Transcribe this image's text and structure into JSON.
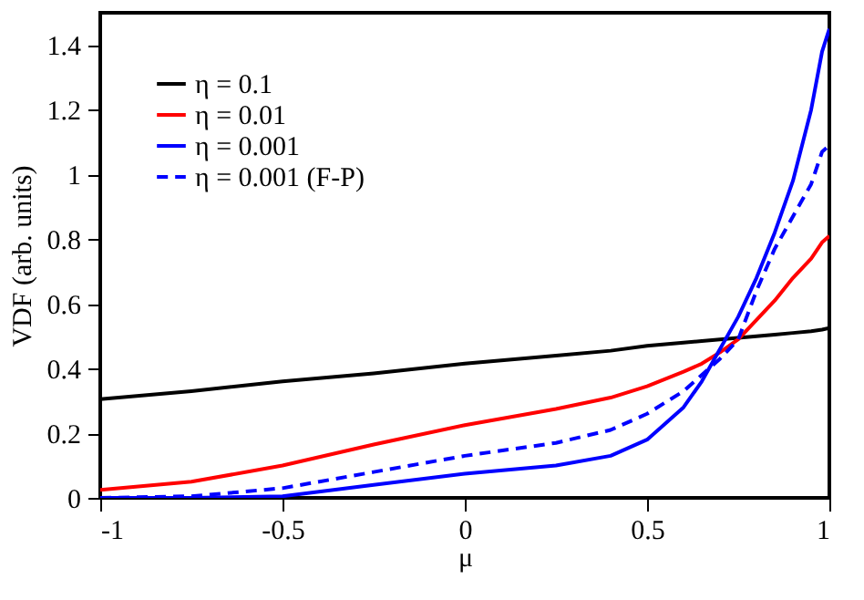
{
  "chart_data": {
    "type": "line",
    "xlabel": "μ",
    "ylabel": "VDF (arb. units)",
    "x": [
      -1,
      -0.75,
      -0.5,
      -0.25,
      0,
      0.25,
      0.4,
      0.5,
      0.6,
      0.65,
      0.7,
      0.75,
      0.8,
      0.85,
      0.9,
      0.95,
      0.98,
      1
    ],
    "xlim": [
      -1,
      1
    ],
    "xticks": [
      -1,
      -0.5,
      0,
      0.5,
      1
    ],
    "ylim": [
      0,
      1.5
    ],
    "yticks": [
      0,
      0.2,
      0.4,
      0.6,
      0.8,
      1,
      1.2,
      1.4
    ],
    "legend": "top left",
    "series": [
      {
        "name": "η = 0.1",
        "color": "#000000",
        "line_style": "solid",
        "values": [
          0.305,
          0.33,
          0.36,
          0.385,
          0.415,
          0.44,
          0.455,
          0.47,
          0.48,
          0.485,
          0.49,
          0.495,
          0.5,
          0.505,
          0.51,
          0.515,
          0.52,
          0.525
        ]
      },
      {
        "name": "η = 0.01",
        "color": "#ff0000",
        "line_style": "solid",
        "values": [
          0.025,
          0.05,
          0.1,
          0.165,
          0.225,
          0.275,
          0.31,
          0.345,
          0.39,
          0.415,
          0.45,
          0.49,
          0.55,
          0.61,
          0.68,
          0.74,
          0.79,
          0.81
        ]
      },
      {
        "name": "η = 0.001",
        "color": "#0000ff",
        "line_style": "solid",
        "values": [
          0,
          0,
          0.005,
          0.04,
          0.075,
          0.1,
          0.13,
          0.18,
          0.28,
          0.36,
          0.46,
          0.56,
          0.68,
          0.82,
          0.98,
          1.2,
          1.38,
          1.45
        ]
      },
      {
        "name": "η = 0.001  (F-P)",
        "color": "#0000ff",
        "line_style": "dashed",
        "values": [
          0,
          0.005,
          0.03,
          0.08,
          0.13,
          0.17,
          0.21,
          0.26,
          0.33,
          0.38,
          0.43,
          0.49,
          0.64,
          0.77,
          0.87,
          0.97,
          1.07,
          1.09
        ]
      }
    ]
  }
}
